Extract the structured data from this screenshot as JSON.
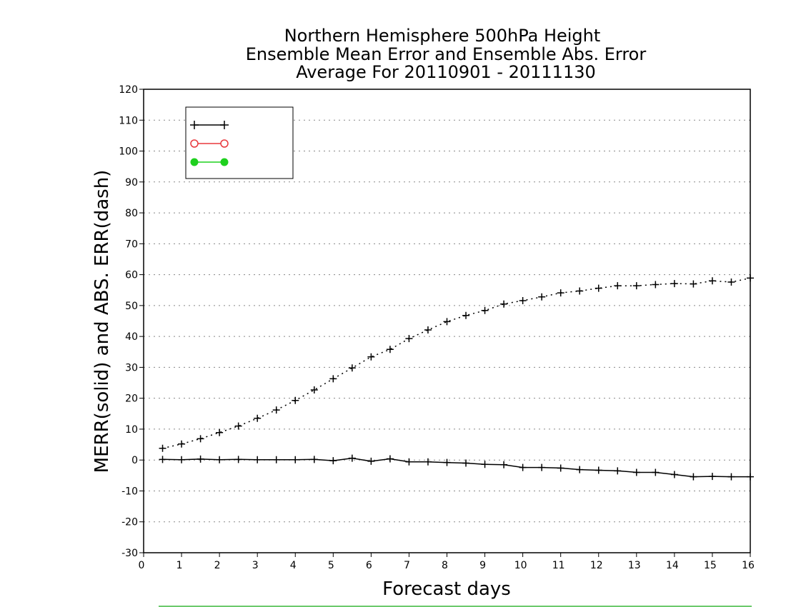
{
  "chart_data": {
    "type": "line",
    "title": [
      "Northern Hemisphere 500hPa Height",
      "Ensemble Mean Error and Ensemble Abs. Error",
      "Average For 20110901 - 20111130"
    ],
    "xlabel": "Forecast days",
    "ylabel": "MERR(solid) and ABS. ERR(dash)",
    "xlim": [
      0,
      16
    ],
    "ylim": [
      -30,
      120
    ],
    "xticks": [
      0,
      1,
      2,
      3,
      4,
      5,
      6,
      7,
      8,
      9,
      10,
      11,
      12,
      13,
      14,
      15,
      16
    ],
    "yticks": [
      -30,
      -20,
      -10,
      0,
      10,
      20,
      30,
      40,
      50,
      60,
      70,
      80,
      90,
      100,
      110,
      120
    ],
    "grid": "horizontal dotted",
    "legend_position": "top-left",
    "legend": [
      {
        "label": "",
        "color": "#000000",
        "marker": "plus"
      },
      {
        "label": "",
        "color": "#e8383d",
        "marker": "open-circle"
      },
      {
        "label": "",
        "color": "#1fd01f",
        "marker": "filled-circle"
      }
    ],
    "x": [
      0.5,
      1,
      1.5,
      2,
      2.5,
      3,
      3.5,
      4,
      4.5,
      5,
      5.5,
      6,
      6.5,
      7,
      7.5,
      8,
      8.5,
      9,
      9.5,
      10,
      10.5,
      11,
      11.5,
      12,
      12.5,
      13,
      13.5,
      14,
      14.5,
      15,
      15.5,
      16
    ],
    "series": [
      {
        "style": "solid",
        "color": "#000000",
        "values": [
          0.2,
          0.1,
          0.3,
          0.1,
          0.2,
          0.1,
          0.1,
          0.1,
          0.2,
          -0.2,
          0.6,
          -0.4,
          0.4,
          -0.6,
          -0.6,
          -0.8,
          -1.0,
          -1.4,
          -1.5,
          -2.4,
          -2.4,
          -2.6,
          -3.1,
          -3.3,
          -3.5,
          -4.0,
          -4.0,
          -4.7,
          -5.4,
          -5.3,
          -5.4,
          -5.4
        ]
      },
      {
        "style": "dash",
        "color": "#000000",
        "values": [
          3.8,
          5.2,
          6.9,
          8.9,
          11.0,
          13.5,
          16.2,
          19.3,
          22.7,
          26.3,
          29.8,
          33.4,
          35.8,
          39.3,
          42.1,
          44.8,
          46.8,
          48.4,
          50.5,
          51.6,
          52.8,
          54.1,
          54.7,
          55.6,
          56.4,
          56.4,
          56.8,
          57.1,
          57.0,
          58.0,
          57.6,
          58.9
        ]
      }
    ]
  },
  "colors": {
    "bottom_rule": "#3cb83c"
  }
}
